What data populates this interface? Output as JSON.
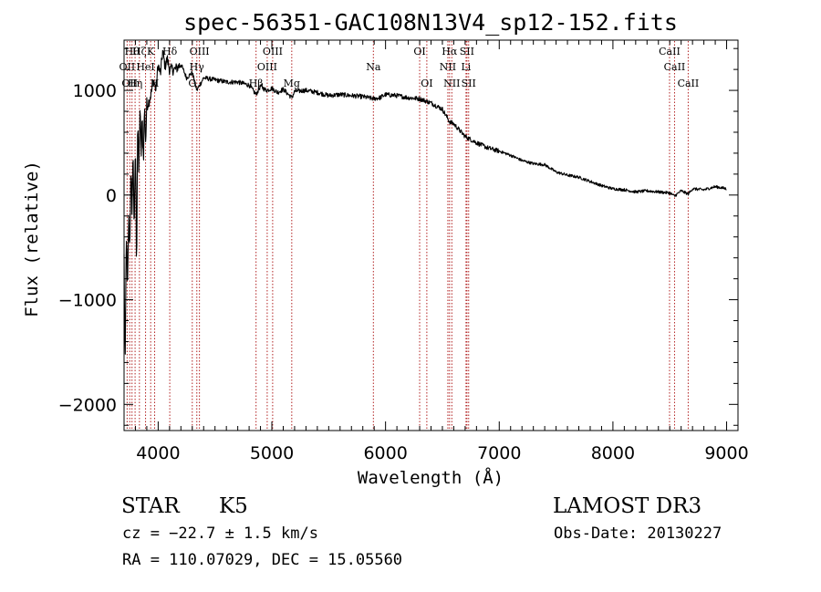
{
  "chart_data": {
    "type": "line",
    "title": "spec-56351-GAC108N13V4_sp12-152.fits",
    "xlabel": "Wavelength (Å)",
    "ylabel": "Flux (relative)",
    "xlim": [
      3700,
      9100
    ],
    "ylim": [
      -2250,
      1480
    ],
    "x_ticks": [
      {
        "value": 4000,
        "label": "4000"
      },
      {
        "value": 5000,
        "label": "5000"
      },
      {
        "value": 6000,
        "label": "6000"
      },
      {
        "value": 7000,
        "label": "7000"
      },
      {
        "value": 8000,
        "label": "8000"
      },
      {
        "value": 9000,
        "label": "9000"
      }
    ],
    "y_ticks": [
      {
        "value": 1000,
        "label": "1000"
      },
      {
        "value": 0,
        "label": "0"
      },
      {
        "value": -1000,
        "label": "−1000"
      },
      {
        "value": -2000,
        "label": "−2000"
      }
    ],
    "spectrum": {
      "x": [
        3700,
        3710,
        3720,
        3730,
        3740,
        3750,
        3760,
        3770,
        3780,
        3790,
        3800,
        3810,
        3820,
        3830,
        3840,
        3850,
        3860,
        3870,
        3880,
        3890,
        3900,
        3920,
        3940,
        3960,
        3980,
        4000,
        4020,
        4040,
        4060,
        4080,
        4100,
        4150,
        4200,
        4250,
        4300,
        4340,
        4400,
        4500,
        4600,
        4700,
        4800,
        4861,
        4900,
        4950,
        5000,
        5050,
        5100,
        5175,
        5200,
        5300,
        5400,
        5500,
        5600,
        5700,
        5800,
        5893,
        5950,
        6000,
        6100,
        6200,
        6300,
        6400,
        6500,
        6563,
        6600,
        6700,
        6800,
        6900,
        7000,
        7100,
        7200,
        7300,
        7400,
        7500,
        7600,
        7700,
        7800,
        7900,
        8000,
        8100,
        8200,
        8300,
        8400,
        8500,
        8542,
        8600,
        8662,
        8700,
        8800,
        8900,
        9000
      ],
      "y": [
        -600,
        -1700,
        -300,
        -1000,
        -200,
        -500,
        150,
        -100,
        400,
        -400,
        550,
        -700,
        750,
        200,
        820,
        400,
        700,
        350,
        850,
        500,
        850,
        900,
        980,
        1100,
        1000,
        1250,
        1150,
        1380,
        1230,
        1300,
        1200,
        1200,
        1250,
        1120,
        1170,
        1000,
        1120,
        1100,
        1080,
        1080,
        1050,
        960,
        1040,
        1000,
        1020,
        980,
        1010,
        930,
        990,
        1000,
        980,
        950,
        960,
        950,
        940,
        920,
        930,
        960,
        950,
        930,
        920,
        880,
        820,
        700,
        680,
        560,
        500,
        450,
        420,
        380,
        330,
        300,
        290,
        220,
        190,
        170,
        130,
        90,
        60,
        50,
        30,
        40,
        30,
        20,
        -10,
        40,
        10,
        60,
        50,
        80,
        60
      ]
    },
    "lines": [
      {
        "wavelength": 3727,
        "label": "OII",
        "row": 2
      },
      {
        "wavelength": 3750,
        "label": "OII",
        "row": 3
      },
      {
        "wavelength": 3770,
        "label": "Hθ",
        "row": 1
      },
      {
        "wavelength": 3797,
        "label": "Hη",
        "row": 3
      },
      {
        "wavelength": 3835,
        "label": "Hζ",
        "row": 1
      },
      {
        "wavelength": 3889,
        "label": "HeI",
        "row": 2
      },
      {
        "wavelength": 3934,
        "label": "K",
        "row": 1
      },
      {
        "wavelength": 3969,
        "label": "H",
        "row": 3
      },
      {
        "wavelength": 4102,
        "label": "Hδ",
        "row": 1
      },
      {
        "wavelength": 4300,
        "label": "G",
        "row": 3
      },
      {
        "wavelength": 4340,
        "label": "Hγ",
        "row": 2
      },
      {
        "wavelength": 4363,
        "label": "OIII",
        "row": 1
      },
      {
        "wavelength": 4861,
        "label": "Hβ",
        "row": 3
      },
      {
        "wavelength": 4959,
        "label": "OIII",
        "row": 2
      },
      {
        "wavelength": 5007,
        "label": "OIII",
        "row": 1
      },
      {
        "wavelength": 5175,
        "label": "Mg",
        "row": 3
      },
      {
        "wavelength": 5893,
        "label": "Na",
        "row": 2
      },
      {
        "wavelength": 6300,
        "label": "OI",
        "row": 1
      },
      {
        "wavelength": 6363,
        "label": "OI",
        "row": 3
      },
      {
        "wavelength": 6548,
        "label": "NII",
        "row": 2
      },
      {
        "wavelength": 6563,
        "label": "Hα",
        "row": 1
      },
      {
        "wavelength": 6583,
        "label": "NII",
        "row": 3
      },
      {
        "wavelength": 6708,
        "label": "Li",
        "row": 2
      },
      {
        "wavelength": 6716,
        "label": "SII",
        "row": 1
      },
      {
        "wavelength": 6731,
        "label": "SII",
        "row": 3
      },
      {
        "wavelength": 8498,
        "label": "CaII",
        "row": 1
      },
      {
        "wavelength": 8542,
        "label": "CaII",
        "row": 2
      },
      {
        "wavelength": 8662,
        "label": "CaII",
        "row": 3
      }
    ]
  },
  "info": {
    "object_class": "STAR",
    "subclass": "K5",
    "redshift": "cz = −22.7 ± 1.5 km/s",
    "coordinates": "RA = 110.07029, DEC =  15.05560",
    "survey": "LAMOST DR3",
    "obs_date": "Obs-Date: 20130227"
  },
  "colors": {
    "spectrum": "#000000",
    "line_marker": "#b22222",
    "axis": "#000000"
  }
}
